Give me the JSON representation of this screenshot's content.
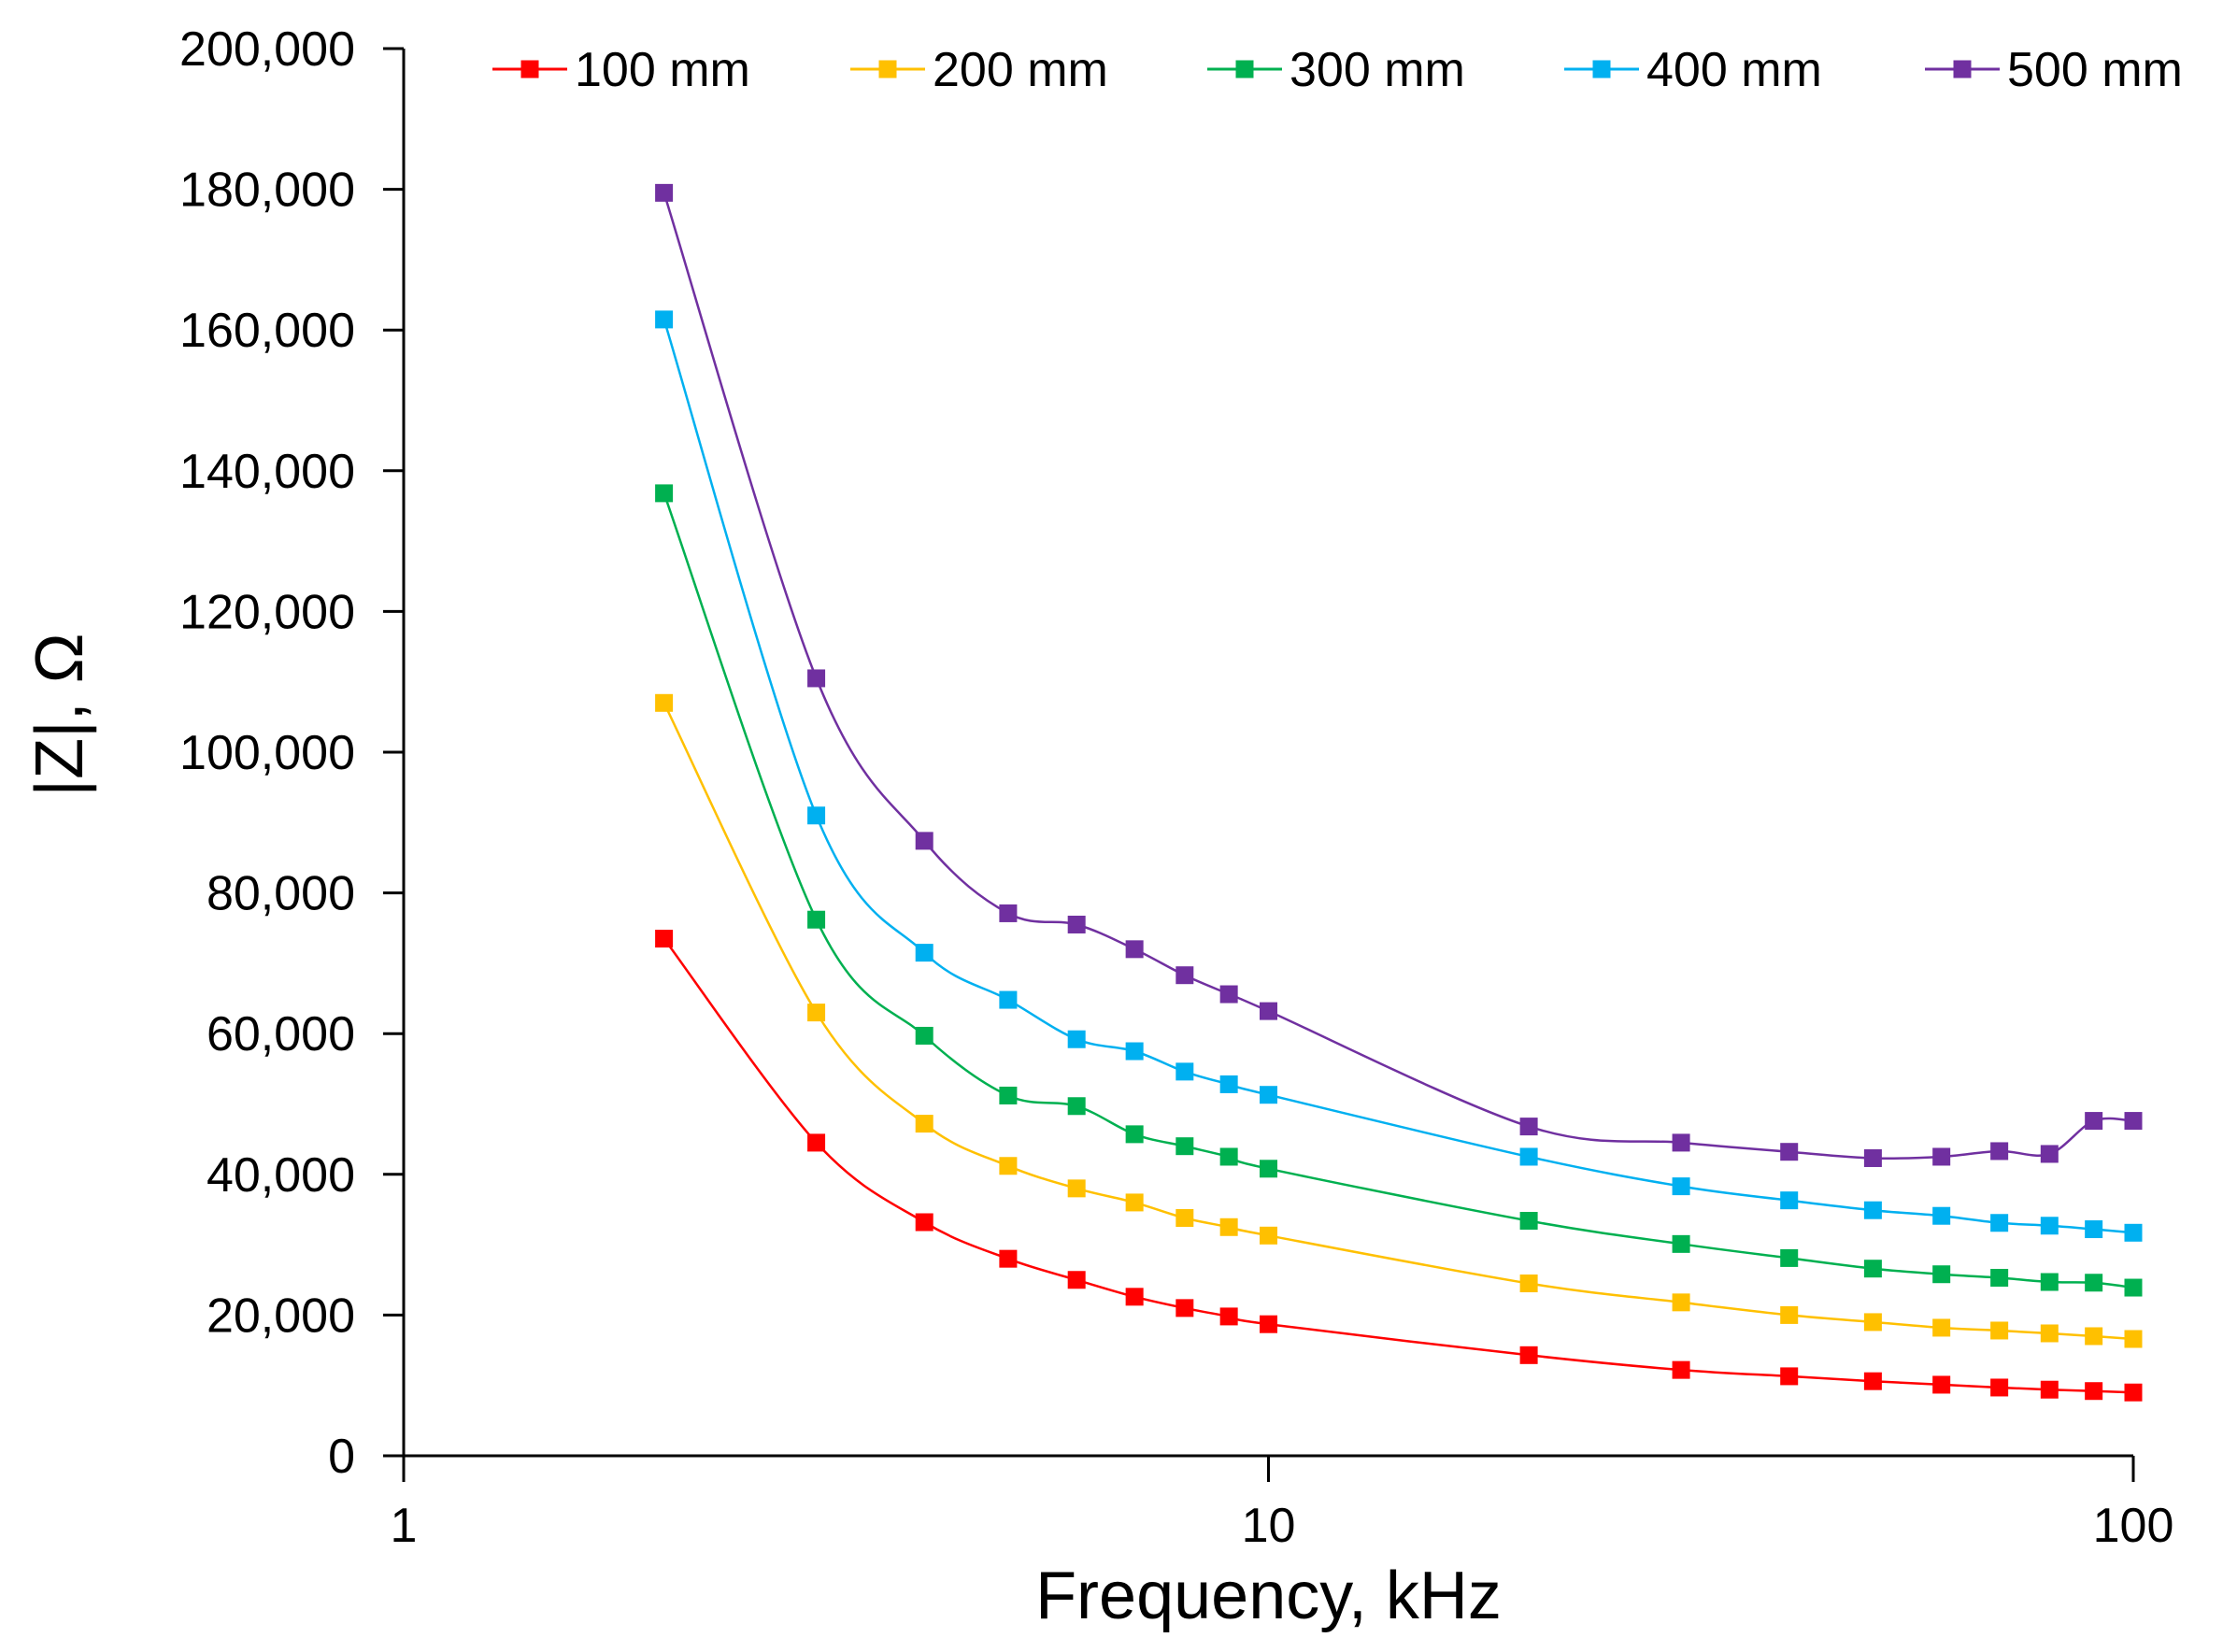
{
  "chart_data": {
    "type": "line",
    "xlabel": "Frequency, kHz",
    "ylabel": "|Z|, Ω",
    "xscale": "log",
    "xlim": [
      1,
      100
    ],
    "ylim": [
      0,
      200000
    ],
    "x_ticks": [
      1,
      10,
      100
    ],
    "x_tick_labels": [
      "1",
      "10",
      "100"
    ],
    "y_ticks": [
      0,
      20000,
      40000,
      60000,
      80000,
      100000,
      120000,
      140000,
      160000,
      180000,
      200000
    ],
    "y_tick_labels": [
      "0",
      "20,000",
      "40,000",
      "60,000",
      "80,000",
      "100,000",
      "120,000",
      "140,000",
      "160,000",
      "180,000",
      "200,000"
    ],
    "grid": false,
    "legend_position": "top",
    "marker": "square",
    "x": [
      2,
      3,
      4,
      5,
      6,
      7,
      8,
      9,
      10,
      20,
      30,
      40,
      50,
      60,
      70,
      80,
      90,
      100
    ],
    "series": [
      {
        "name": "100 mm",
        "color": "#ff0000",
        "values": [
          73500,
          44500,
          33200,
          28000,
          25000,
          22600,
          21000,
          19800,
          18700,
          14300,
          12200,
          11300,
          10600,
          10100,
          9700,
          9400,
          9200,
          9000
        ]
      },
      {
        "name": "200 mm",
        "color": "#ffc000",
        "values": [
          107000,
          63000,
          47200,
          41200,
          38000,
          36000,
          33800,
          32500,
          31300,
          24500,
          21800,
          20000,
          19000,
          18200,
          17800,
          17400,
          17000,
          16600
        ]
      },
      {
        "name": "300 mm",
        "color": "#00b050",
        "values": [
          136800,
          76200,
          59700,
          51200,
          49700,
          45700,
          44000,
          42500,
          40800,
          33400,
          30100,
          28100,
          26600,
          25800,
          25300,
          24700,
          24600,
          23900
        ]
      },
      {
        "name": "400 mm",
        "color": "#00b0f0",
        "values": [
          161500,
          91000,
          71500,
          64800,
          59200,
          57500,
          54600,
          52800,
          51300,
          42500,
          38300,
          36300,
          34900,
          34100,
          33100,
          32700,
          32200,
          31700
        ]
      },
      {
        "name": "500 mm",
        "color": "#7030a0",
        "values": [
          179500,
          110500,
          87400,
          77100,
          75500,
          72000,
          68300,
          65600,
          63200,
          46800,
          44500,
          43200,
          42300,
          42500,
          43300,
          42900,
          47600,
          47600
        ]
      }
    ]
  }
}
